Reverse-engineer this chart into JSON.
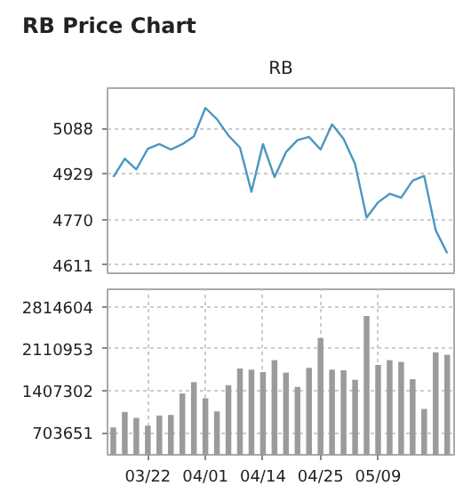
{
  "chart_data": [
    {
      "type": "line",
      "title": "RB Price Chart",
      "subtitle": "RB",
      "series": [
        {
          "color": "#4a97c2",
          "values": [
            4918,
            4982,
            4945,
            5017,
            5033,
            5014,
            5033,
            5060,
            5159,
            5120,
            5063,
            5021,
            4867,
            5033,
            4918,
            5005,
            5047,
            5058,
            5014,
            5102,
            5051,
            4964,
            4777,
            4830,
            4860,
            4846,
            4906,
            4922,
            4733,
            4653
          ]
        }
      ],
      "ylim": [
        4583,
        5228
      ],
      "yticks": [
        4611,
        4770,
        4929,
        5088
      ],
      "grid": "y",
      "tick_labels": "y"
    },
    {
      "type": "bar",
      "categories": [
        null,
        null,
        null,
        "03/22",
        null,
        null,
        null,
        null,
        "04/01",
        null,
        null,
        null,
        null,
        "04/14",
        null,
        null,
        null,
        null,
        "04/25",
        null,
        null,
        null,
        null,
        "05/09",
        null,
        null,
        null,
        null,
        null,
        null
      ],
      "series": [
        {
          "color": "#9b9b9b",
          "values": [
            790000,
            1050000,
            950000,
            820000,
            990000,
            1000000,
            1360000,
            1550000,
            1280000,
            1060000,
            1500000,
            1780000,
            1760000,
            1720000,
            1920000,
            1710000,
            1470000,
            1790000,
            2290000,
            1760000,
            1750000,
            1590000,
            2660000,
            1840000,
            1920000,
            1890000,
            1600000,
            1100000,
            2050000,
            2010000
          ]
        }
      ],
      "ylim": [
        330000,
        3110000
      ],
      "yticks": [
        703651,
        1407302,
        2110953,
        2814604
      ],
      "grid": true
    }
  ]
}
